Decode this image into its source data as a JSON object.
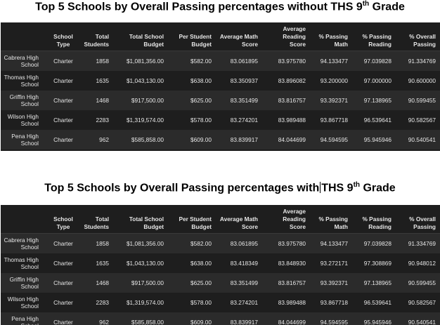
{
  "title1": {
    "prefix": "Top 5 Schools by Overall Passing percentages without THS 9",
    "sup": "th",
    "suffix": " Grade"
  },
  "title2": {
    "prefix": "Top 5 Schools by Overall Passing percentages with",
    "mid": "THS 9",
    "sup": "th",
    "suffix": " Grade"
  },
  "headers": [
    "School Type",
    "Total Students",
    "Total School Budget",
    "Per Student Budget",
    "Average Math Score",
    "Average Reading Score",
    "% Passing Math",
    "% Passing Reading",
    "% Overall Passing"
  ],
  "table1": [
    [
      "Cabrera High School",
      "Charter",
      "1858",
      "$1,081,356.00",
      "$582.00",
      "83.061895",
      "83.975780",
      "94.133477",
      "97.039828",
      "91.334769"
    ],
    [
      "Thomas High School",
      "Charter",
      "1635",
      "$1,043,130.00",
      "$638.00",
      "83.350937",
      "83.896082",
      "93.200000",
      "97.000000",
      "90.600000"
    ],
    [
      "Griffin High School",
      "Charter",
      "1468",
      "$917,500.00",
      "$625.00",
      "83.351499",
      "83.816757",
      "93.392371",
      "97.138965",
      "90.599455"
    ],
    [
      "Wilson High School",
      "Charter",
      "2283",
      "$1,319,574.00",
      "$578.00",
      "83.274201",
      "83.989488",
      "93.867718",
      "96.539641",
      "90.582567"
    ],
    [
      "Pena High School",
      "Charter",
      "962",
      "$585,858.00",
      "$609.00",
      "83.839917",
      "84.044699",
      "94.594595",
      "95.945946",
      "90.540541"
    ]
  ],
  "table2": [
    [
      "Cabrera High School",
      "Charter",
      "1858",
      "$1,081,356.00",
      "$582.00",
      "83.061895",
      "83.975780",
      "94.133477",
      "97.039828",
      "91.334769"
    ],
    [
      "Thomas High School",
      "Charter",
      "1635",
      "$1,043,130.00",
      "$638.00",
      "83.418349",
      "83.848930",
      "93.272171",
      "97.308869",
      "90.948012"
    ],
    [
      "Griffin High School",
      "Charter",
      "1468",
      "$917,500.00",
      "$625.00",
      "83.351499",
      "83.816757",
      "93.392371",
      "97.138965",
      "90.599455"
    ],
    [
      "Wilson High School",
      "Charter",
      "2283",
      "$1,319,574.00",
      "$578.00",
      "83.274201",
      "83.989488",
      "93.867718",
      "96.539641",
      "90.582567"
    ],
    [
      "Pena High School",
      "Charter",
      "962",
      "$585,858.00",
      "$609.00",
      "83.839917",
      "84.044699",
      "94.594595",
      "95.945946",
      "90.540541"
    ]
  ]
}
